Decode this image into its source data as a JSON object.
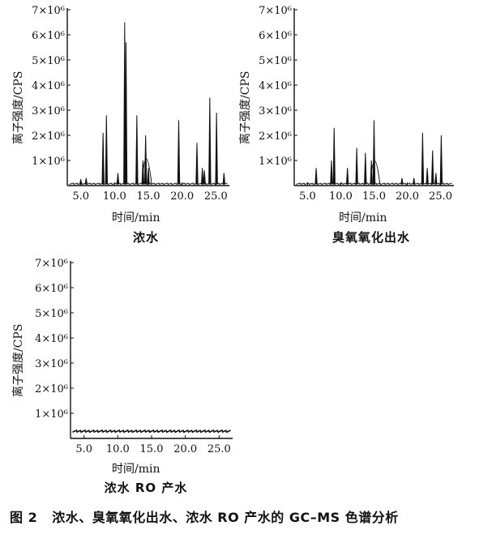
{
  "figure": {
    "caption_number": "图 2",
    "caption_text": "浓水、臭氧氧化出水、浓水 RO 产水的 GC–MS 色谱分析"
  },
  "chart_data": [
    {
      "type": "line",
      "title": "浓水",
      "xlabel": "时间/min",
      "ylabel": "离子强度/CPS",
      "xlim": [
        3.0,
        27.0
      ],
      "ylim": [
        0,
        7000000
      ],
      "x_ticks": [
        "5.0",
        "10.0",
        "15.0",
        "20.0",
        "25.0"
      ],
      "y_ticks": [
        "1×10⁶",
        "2×10⁶",
        "3×10⁶",
        "4×10⁶",
        "5×10⁶",
        "6×10⁶",
        "7×10⁶"
      ],
      "baseline": 50000,
      "peaks": [
        {
          "x": 5.0,
          "y": 250000
        },
        {
          "x": 5.8,
          "y": 300000
        },
        {
          "x": 8.3,
          "y": 2100000
        },
        {
          "x": 8.8,
          "y": 2800000
        },
        {
          "x": 10.5,
          "y": 500000
        },
        {
          "x": 11.5,
          "y": 6500000
        },
        {
          "x": 11.7,
          "y": 5700000
        },
        {
          "x": 13.3,
          "y": 2800000
        },
        {
          "x": 14.2,
          "y": 1000000
        },
        {
          "x": 14.6,
          "y": 2000000
        },
        {
          "x": 15.0,
          "y": 700000
        },
        {
          "x": 19.5,
          "y": 2600000
        },
        {
          "x": 22.2,
          "y": 1700000
        },
        {
          "x": 23.0,
          "y": 700000
        },
        {
          "x": 23.3,
          "y": 600000
        },
        {
          "x": 24.1,
          "y": 3500000
        },
        {
          "x": 25.1,
          "y": 2900000
        },
        {
          "x": 26.2,
          "y": 500000
        }
      ],
      "humps": [
        {
          "x": 14.6,
          "y": 1300000,
          "w": 0.9
        }
      ]
    },
    {
      "type": "line",
      "title": "臭氧氧化出水",
      "xlabel": "时间/min",
      "ylabel": "离子强度/CPS",
      "xlim": [
        3.0,
        27.0
      ],
      "ylim": [
        0,
        7000000
      ],
      "x_ticks": [
        "5.0",
        "10.0",
        "15.0",
        "20.0",
        "25.0"
      ],
      "y_ticks": [
        "1×10⁶",
        "2×10⁶",
        "3×10⁶",
        "4×10⁶",
        "5×10⁶",
        "6×10⁶",
        "7×10⁶"
      ],
      "baseline": 50000,
      "peaks": [
        {
          "x": 6.3,
          "y": 700000
        },
        {
          "x": 8.6,
          "y": 1000000
        },
        {
          "x": 9.0,
          "y": 2300000
        },
        {
          "x": 11.0,
          "y": 700000
        },
        {
          "x": 12.4,
          "y": 1500000
        },
        {
          "x": 13.7,
          "y": 1300000
        },
        {
          "x": 14.6,
          "y": 1000000
        },
        {
          "x": 15.0,
          "y": 2600000
        },
        {
          "x": 19.2,
          "y": 300000
        },
        {
          "x": 21.0,
          "y": 300000
        },
        {
          "x": 22.3,
          "y": 2100000
        },
        {
          "x": 23.0,
          "y": 700000
        },
        {
          "x": 23.8,
          "y": 1400000
        },
        {
          "x": 24.3,
          "y": 500000
        },
        {
          "x": 25.1,
          "y": 2000000
        }
      ],
      "humps": [
        {
          "x": 15.0,
          "y": 1200000,
          "w": 0.9
        }
      ]
    },
    {
      "type": "line",
      "title": "浓水 RO 产水",
      "xlabel": "时间/min",
      "ylabel": "离子强度/CPS",
      "xlim": [
        3.0,
        27.0
      ],
      "ylim": [
        0,
        7000000
      ],
      "x_ticks": [
        "5.0",
        "10.0",
        "15.0",
        "20.0",
        "25.0"
      ],
      "y_ticks": [
        "1×10⁶",
        "2×10⁶",
        "3×10⁶",
        "4×10⁶",
        "5×10⁶",
        "6×10⁶",
        "7×10⁶"
      ],
      "baseline": 250000,
      "peaks": [],
      "humps": []
    }
  ]
}
